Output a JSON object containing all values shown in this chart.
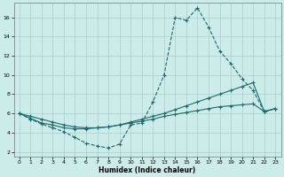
{
  "xlabel": "Humidex (Indice chaleur)",
  "background_color": "#ccecea",
  "grid_color": "#aacfcd",
  "line_color": "#1a6b6b",
  "xlim": [
    -0.5,
    23.5
  ],
  "ylim": [
    1.5,
    17.5
  ],
  "yticks": [
    2,
    4,
    6,
    8,
    10,
    12,
    14,
    16
  ],
  "xticks": [
    0,
    1,
    2,
    3,
    4,
    5,
    6,
    7,
    8,
    9,
    10,
    11,
    12,
    13,
    14,
    15,
    16,
    17,
    18,
    19,
    20,
    21,
    22,
    23
  ],
  "s1_x": [
    0,
    1,
    2,
    3,
    4,
    5,
    6,
    7,
    8,
    9,
    10,
    11,
    12,
    13,
    14,
    15,
    16,
    17,
    18,
    19,
    20,
    21,
    22,
    23
  ],
  "s1_y": [
    6.0,
    5.4,
    4.9,
    4.5,
    4.1,
    3.5,
    2.9,
    2.6,
    2.4,
    2.8,
    4.8,
    5.0,
    7.2,
    10.0,
    16.0,
    15.7,
    17.0,
    15.0,
    12.5,
    11.2,
    9.6,
    8.4,
    6.2,
    6.5
  ],
  "s2_x": [
    0,
    1,
    2,
    3,
    4,
    5,
    6,
    7,
    8,
    9,
    10,
    11,
    12,
    13,
    14,
    15,
    16,
    17,
    18,
    19,
    20,
    21,
    22,
    23
  ],
  "s2_y": [
    6.0,
    5.5,
    5.0,
    4.8,
    4.5,
    4.4,
    4.4,
    4.5,
    4.6,
    4.8,
    5.1,
    5.4,
    5.7,
    6.0,
    6.4,
    6.8,
    7.2,
    7.6,
    8.0,
    8.4,
    8.8,
    9.2,
    6.2,
    6.5
  ],
  "s3_x": [
    0,
    1,
    2,
    3,
    4,
    5,
    6,
    7,
    8,
    9,
    10,
    11,
    12,
    13,
    14,
    15,
    16,
    17,
    18,
    19,
    20,
    21,
    22,
    23
  ],
  "s3_y": [
    6.0,
    5.7,
    5.4,
    5.1,
    4.8,
    4.6,
    4.5,
    4.5,
    4.6,
    4.8,
    5.0,
    5.2,
    5.4,
    5.7,
    5.9,
    6.1,
    6.3,
    6.5,
    6.7,
    6.8,
    6.9,
    7.0,
    6.2,
    6.5
  ]
}
